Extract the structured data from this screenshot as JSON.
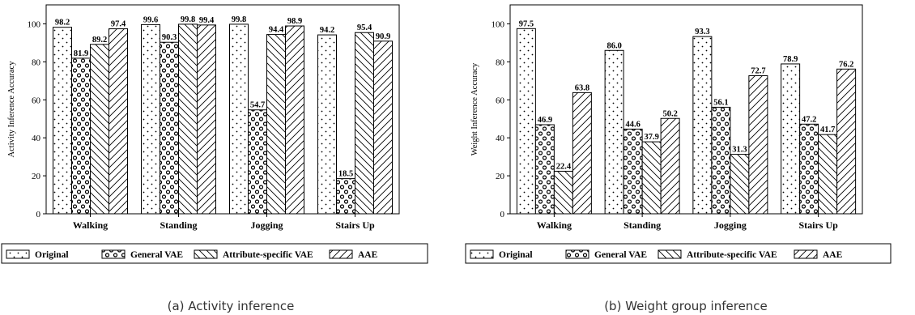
{
  "legend": [
    "Original",
    "General VAE",
    "Attribute-specific VAE",
    "AAE"
  ],
  "chart_data": [
    {
      "type": "bar",
      "caption": "(a) Activity inference",
      "ylabel": "Activity Inference Accuracy",
      "xlabel": "",
      "ylim": [
        0,
        110
      ],
      "yticks": [
        0,
        20,
        40,
        60,
        80,
        100
      ],
      "categories": [
        "Walking",
        "Standing",
        "Jogging",
        "Stairs Up"
      ],
      "series": [
        {
          "name": "Original",
          "values": [
            98.2,
            99.6,
            99.8,
            94.2
          ]
        },
        {
          "name": "General VAE",
          "values": [
            81.9,
            90.3,
            54.7,
            18.5
          ]
        },
        {
          "name": "Attribute-specific VAE",
          "values": [
            89.2,
            99.8,
            94.4,
            95.4
          ]
        },
        {
          "name": "AAE",
          "values": [
            97.4,
            99.4,
            98.9,
            90.9
          ]
        }
      ],
      "grid": false,
      "legend_position": "bottom"
    },
    {
      "type": "bar",
      "caption": "(b) Weight group inference",
      "ylabel": "Weight Inference Accuracy",
      "xlabel": "",
      "ylim": [
        0,
        110
      ],
      "yticks": [
        0,
        20,
        40,
        60,
        80,
        100
      ],
      "categories": [
        "Walking",
        "Standing",
        "Jogging",
        "Stairs Up"
      ],
      "series": [
        {
          "name": "Original",
          "values": [
            97.5,
            86.0,
            93.3,
            78.9
          ]
        },
        {
          "name": "General VAE",
          "values": [
            46.9,
            44.6,
            56.1,
            47.2
          ]
        },
        {
          "name": "Attribute-specific VAE",
          "values": [
            22.4,
            37.9,
            31.3,
            41.7
          ]
        },
        {
          "name": "AAE",
          "values": [
            63.8,
            50.2,
            72.7,
            76.2
          ]
        }
      ],
      "grid": false,
      "legend_position": "bottom"
    }
  ]
}
